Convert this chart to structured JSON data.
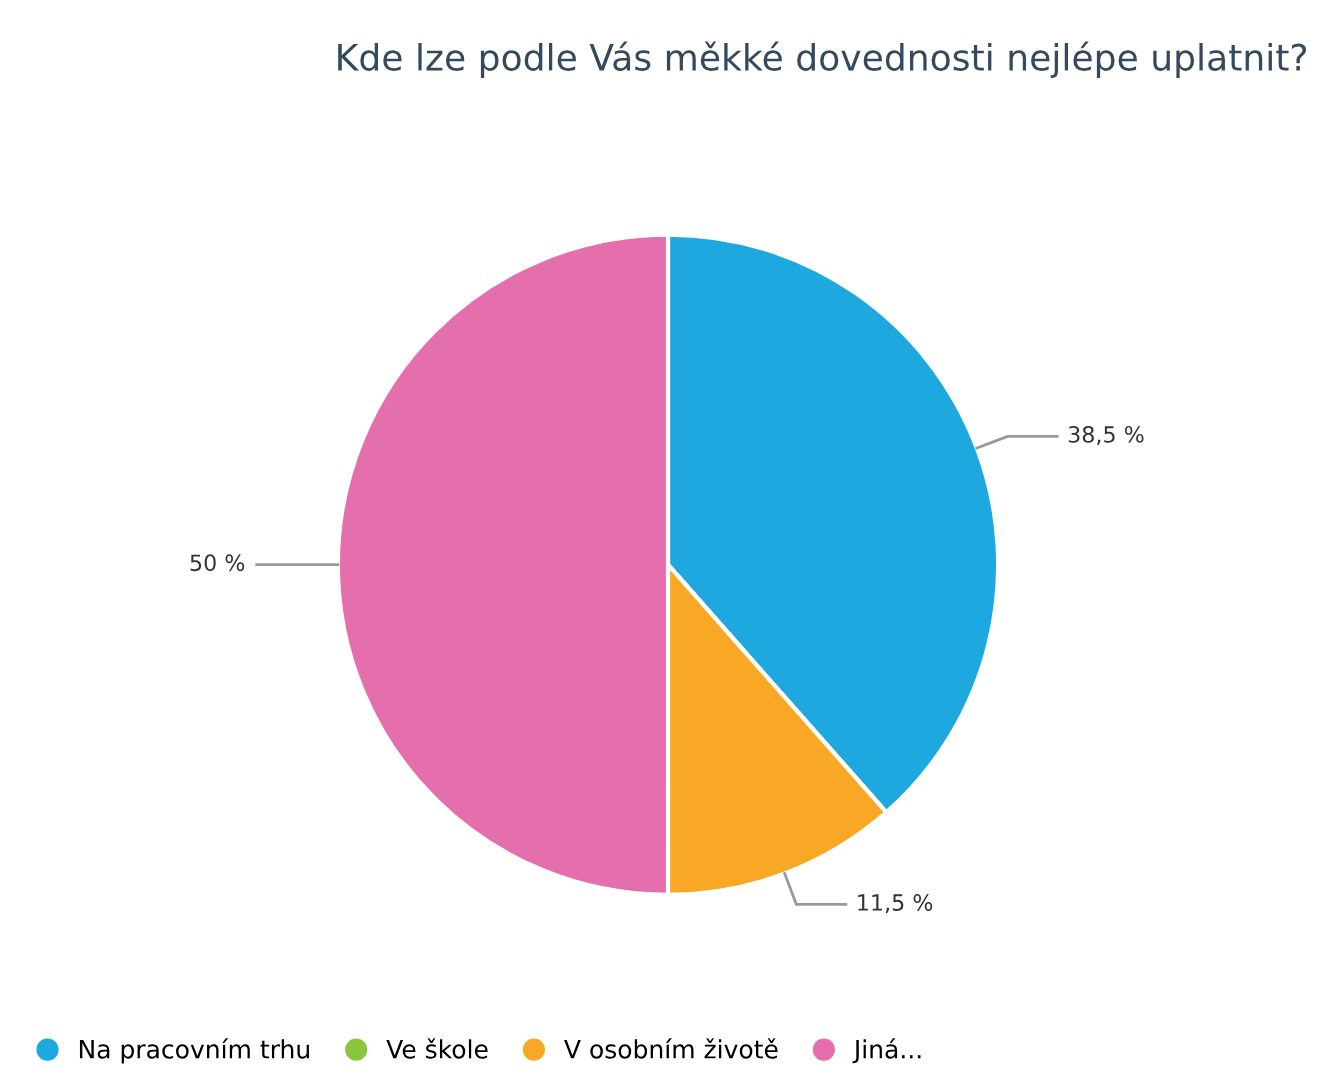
{
  "chart_data": {
    "type": "pie",
    "title": "Kde lze podle Vás měkké dovednosti nejlépe uplatnit?",
    "categories": [
      "Na pracovním trhu",
      "Ve škole",
      "V osobním životě",
      "Jiná..."
    ],
    "values": [
      38.5,
      0,
      11.5,
      50
    ],
    "colors": [
      "#1ea8e0",
      "#8cc63f",
      "#f9a825",
      "#e56fac"
    ],
    "value_labels": [
      "38,5 %",
      null,
      "11,5 %",
      "50 %"
    ],
    "legend": "bottom"
  }
}
